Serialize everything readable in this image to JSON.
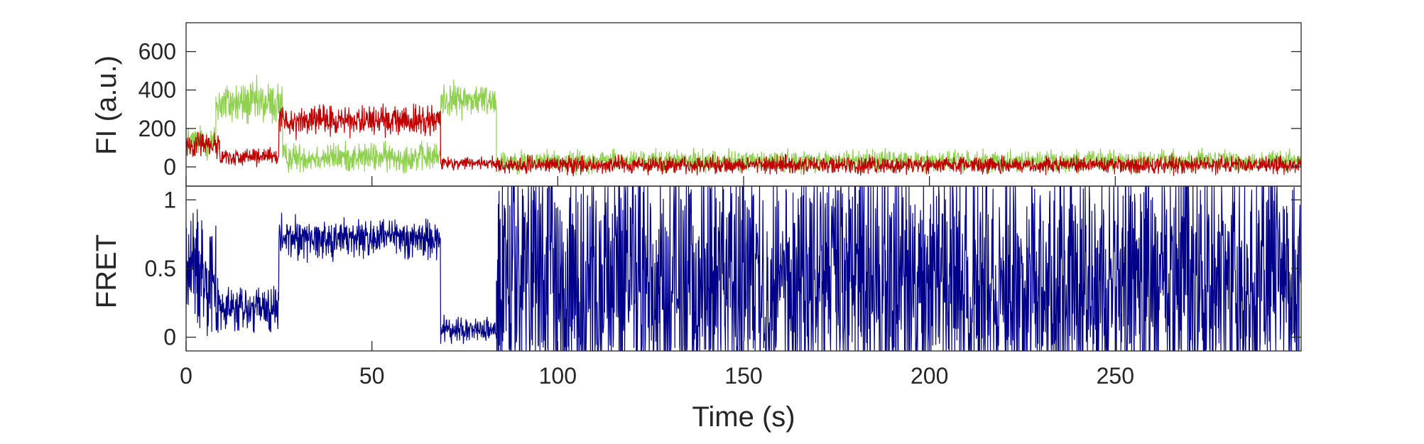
{
  "chart_data": [
    {
      "type": "line",
      "panel": "top",
      "ylabel": "FI (a.u.)",
      "xlabel": "",
      "xlim": [
        0,
        300
      ],
      "ylim": [
        -100,
        750
      ],
      "yticks": [
        0,
        200,
        400,
        600
      ],
      "yticklabels": [
        "0",
        "200",
        "400",
        "600"
      ],
      "grid": false,
      "series": [
        {
          "color": "#8fd14f",
          "segments": [
            {
              "t0": 0,
              "t1": 8,
              "level": 130,
              "noise": 70
            },
            {
              "t0": 8,
              "t1": 26,
              "level": 330,
              "noise": 95
            },
            {
              "t0": 26,
              "t1": 68.5,
              "level": 50,
              "noise": 60
            },
            {
              "t0": 68.5,
              "t1": 83.5,
              "level": 350,
              "noise": 70
            },
            {
              "t0": 83.5,
              "t1": 300,
              "level": 30,
              "noise": 45
            }
          ]
        },
        {
          "color": "#c00000",
          "segments": [
            {
              "t0": 0,
              "t1": 9,
              "level": 120,
              "noise": 55
            },
            {
              "t0": 9,
              "t1": 25,
              "level": 50,
              "noise": 35
            },
            {
              "t0": 25,
              "t1": 68.5,
              "level": 240,
              "noise": 60
            },
            {
              "t0": 68.5,
              "t1": 83.5,
              "level": 20,
              "noise": 25
            },
            {
              "t0": 83.5,
              "t1": 300,
              "level": 10,
              "noise": 35
            }
          ]
        }
      ]
    },
    {
      "type": "line",
      "panel": "bottom",
      "ylabel": "FRET",
      "xlabel": "Time (s)",
      "xlim": [
        0,
        300
      ],
      "ylim": [
        -0.1,
        1.1
      ],
      "yticks": [
        0,
        0.5,
        1
      ],
      "yticklabels": [
        "0",
        "0.5",
        "1"
      ],
      "xticks": [
        0,
        50,
        100,
        150,
        200,
        250
      ],
      "xticklabels": [
        "0",
        "50",
        "100",
        "150",
        "200",
        "250"
      ],
      "grid": false,
      "series": [
        {
          "color": "#00008b",
          "segments": [
            {
              "t0": 0,
              "t1": 8,
              "level": 0.5,
              "noise": 0.35
            },
            {
              "t0": 8,
              "t1": 25,
              "level": 0.2,
              "noise": 0.15
            },
            {
              "t0": 25,
              "t1": 68.5,
              "level": 0.72,
              "noise": 0.12
            },
            {
              "t0": 68.5,
              "t1": 83.5,
              "level": 0.05,
              "noise": 0.08
            },
            {
              "t0": 83.5,
              "t1": 300,
              "level": 0.4,
              "noise": 0.8
            }
          ]
        }
      ]
    }
  ]
}
